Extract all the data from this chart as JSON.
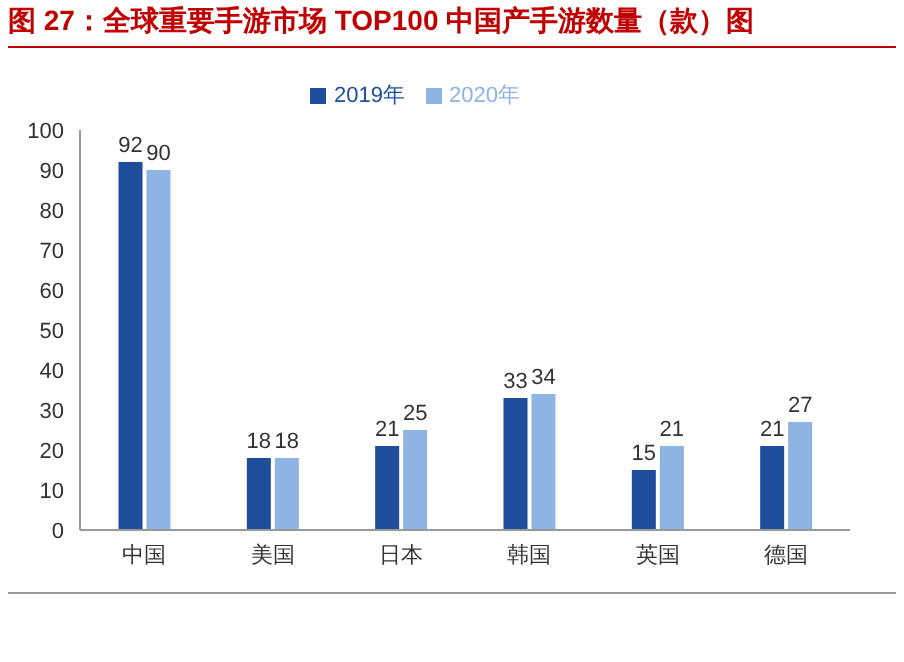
{
  "chart_data": {
    "type": "bar",
    "title": "图 27：全球重要手游市场 TOP100 中国产手游数量（款）图",
    "categories": [
      "中国",
      "美国",
      "日本",
      "韩国",
      "英国",
      "德国"
    ],
    "series": [
      {
        "name": "2019年",
        "color": "#1f4e9c",
        "values": [
          92,
          18,
          21,
          33,
          15,
          21
        ]
      },
      {
        "name": "2020年",
        "color": "#8db4e2",
        "values": [
          90,
          18,
          25,
          34,
          21,
          27
        ]
      }
    ],
    "ylim": [
      0,
      100
    ],
    "yticks": [
      0,
      10,
      20,
      30,
      40,
      50,
      60,
      70,
      80,
      90,
      100
    ],
    "grid": false,
    "legend": "top",
    "data_labels": true
  }
}
